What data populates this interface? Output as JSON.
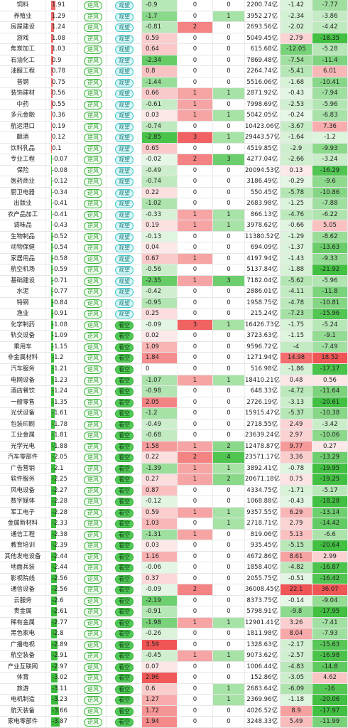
{
  "table": {
    "rows": [
      [
        "饲料",
        1.91,
        "逆风",
        "观望",
        -0.9,
        0,
        0,
        "2200.74亿",
        -1.42,
        -7.77
      ],
      [
        "养殖业",
        1.29,
        "逆风",
        "观望",
        -1.7,
        0,
        1,
        "3952.27亿",
        -2.34,
        -3.86
      ],
      [
        "房屋建设",
        1.24,
        "逆风",
        "观望",
        -0.81,
        2,
        0,
        "2693.56亿",
        -2.02,
        -4.42
      ],
      [
        "游戏",
        1.08,
        "逆风",
        "观望",
        0.59,
        0,
        0,
        "5049.45亿",
        2.79,
        -18.35
      ],
      [
        "焦炭加工",
        1.03,
        "逆风",
        "观望",
        0.64,
        0,
        0,
        "615.68亿",
        -12.05,
        -5.28
      ],
      [
        "石油化工",
        0.9,
        "逆风",
        "观望",
        -2.34,
        0,
        0,
        "7869.48亿",
        -7.54,
        -11.4
      ],
      [
        "油服工程",
        0.78,
        "逆风",
        "观望",
        0.8,
        0,
        0,
        "2264.74亿",
        -5.41,
        6.01
      ],
      [
        "普钢",
        0.75,
        "逆风",
        "观望",
        -1.44,
        0,
        0,
        "5516.06亿",
        -1.68,
        -10.41
      ],
      [
        "装饰建材",
        0.56,
        "逆风",
        "观望",
        0.66,
        1,
        1,
        "2871.92亿",
        -0.43,
        -7.94
      ],
      [
        "中药",
        0.55,
        "逆风",
        "观望",
        -0.61,
        1,
        0,
        "7998.69亿",
        -2.53,
        -5.96
      ],
      [
        "多元金融",
        0.36,
        "逆风",
        "观望",
        0.03,
        1,
        1,
        "5042.05亿",
        -0.24,
        -6.83
      ],
      [
        "航运港口",
        0.19,
        "逆风",
        "观望",
        -0.74,
        0,
        0,
        "10423.06亿",
        -3.67,
        7.36
      ],
      [
        "酿酒",
        0.12,
        "逆风",
        "观望",
        -2.85,
        3,
        1,
        "29443.57亿",
        -1.64,
        -1.2
      ],
      [
        "饮料乳品",
        0.1,
        "逆风",
        "观望",
        0.65,
        0,
        0,
        "4519.85亿",
        -2.9,
        -9.93
      ],
      [
        "专业工程",
        -0.07,
        "逆风",
        "观望",
        -0.02,
        2,
        3,
        "4277.04亿",
        -2.66,
        -3.24
      ],
      [
        "保险",
        -0.08,
        "逆风",
        "观望",
        -0.49,
        0,
        0,
        "20094.53亿",
        0.13,
        -16.29
      ],
      [
        "医药商业",
        -0.12,
        "逆风",
        "观望",
        -0.74,
        0,
        0,
        "3186.49亿",
        -0.29,
        -9.6
      ],
      [
        "厨卫电器",
        -0.34,
        "逆风",
        "观望",
        0.22,
        0,
        0,
        "550.45亿",
        -5.78,
        -10.86
      ],
      [
        "出版业",
        -0.41,
        "逆风",
        "观望",
        -1.02,
        0,
        0,
        "2683.98亿",
        -1.25,
        -7.88
      ],
      [
        "农产品加工",
        -0.41,
        "逆风",
        "观望",
        -0.33,
        1,
        1,
        "866.13亿",
        -4.76,
        -6.22
      ],
      [
        "调味品",
        -0.43,
        "逆风",
        "观望",
        0.19,
        1,
        1,
        "3978.62亿",
        -0.66,
        5.05
      ],
      [
        "生物制品",
        -0.52,
        "逆风",
        "观望",
        -0.13,
        0,
        0,
        "11380.52亿",
        -1.29,
        -8.62
      ],
      [
        "动物保健",
        -0.54,
        "逆风",
        "观望",
        0.04,
        0,
        0,
        "694.09亿",
        -1.37,
        -13.63
      ],
      [
        "家居用品",
        -0.58,
        "逆风",
        "观望",
        0.67,
        1,
        0,
        "4197.94亿",
        -1.43,
        -9.33
      ],
      [
        "航空机场",
        -0.59,
        "逆风",
        "观望",
        -0.56,
        0,
        0,
        "5137.84亿",
        -1.88,
        -21.92
      ],
      [
        "基础建设",
        -0.71,
        "逆风",
        "观望",
        -2.35,
        1,
        3,
        "7182.04亿",
        -5.62,
        -5.96
      ],
      [
        "水泥",
        -0.77,
        "逆风",
        "观望",
        -0.42,
        0,
        0,
        "2886.01亿",
        -4.11,
        -11.8
      ],
      [
        "特钢",
        -0.84,
        "逆风",
        "观望",
        -0.95,
        0,
        0,
        "1958.75亿",
        -4.78,
        -10.81
      ],
      [
        "渔业",
        -0.91,
        "逆风",
        "观望",
        0.25,
        0,
        0,
        "215.24亿",
        -7.23,
        -15.96
      ],
      [
        "化学制药",
        -1.08,
        "逆风",
        "看空",
        -0.09,
        3,
        1,
        "16426.73亿",
        -1.75,
        -5.24
      ],
      [
        "轨交设备",
        -1.09,
        "逆风",
        "看空",
        0.02,
        0,
        0,
        "3723.63亿",
        -1.15,
        -9.1
      ],
      [
        "乘用车",
        -1.15,
        "逆风",
        "看空",
        1.09,
        0,
        0,
        "9596.72亿",
        -4,
        -7.49
      ],
      [
        "非金属材料",
        -1.2,
        "逆风",
        "看空",
        1.84,
        0,
        0,
        "1271.94亿",
        14.98,
        18.52
      ],
      [
        "汽车服务",
        -1.21,
        "逆风",
        "看空",
        0,
        0,
        0,
        "516.98亿",
        -1.86,
        -17.17
      ],
      [
        "电网设备",
        -1.23,
        "逆风",
        "看空",
        -1.07,
        1,
        1,
        "18410.21亿",
        0.48,
        0.56
      ],
      [
        "酒店餐饮",
        -1.24,
        "逆风",
        "看空",
        -0.98,
        0,
        0,
        "648.33亿",
        -4.72,
        -11.64
      ],
      [
        "一般零售",
        -1.35,
        "逆风",
        "看空",
        2.05,
        0,
        0,
        "2726.19亿",
        -3.13,
        -20.61
      ],
      [
        "光伏设备",
        -1.61,
        "逆风",
        "看空",
        -1.2,
        0,
        0,
        "15915.47亿",
        -5.37,
        -10.38
      ],
      [
        "包装印刷",
        -1.78,
        "逆风",
        "看空",
        -0.49,
        0,
        0,
        "2718.55亿",
        2.49,
        -3.42
      ],
      [
        "工业金属",
        -1.81,
        "逆风",
        "看空",
        -0.68,
        0,
        0,
        "23639.24亿",
        2.97,
        -10.06
      ],
      [
        "光学光电",
        -1.88,
        "逆风",
        "看空",
        1.58,
        1,
        2,
        "12478.87亿",
        9.77,
        0.27
      ],
      [
        "汽车零部件",
        -2.05,
        "逆风",
        "看空",
        0.22,
        2,
        4,
        "23571.17亿",
        3.36,
        -13.29
      ],
      [
        "广告营销",
        -2.1,
        "逆风",
        "看空",
        -1.39,
        1,
        1,
        "3892.41亿",
        -0.78,
        -19.95
      ],
      [
        "软件服务",
        -2.25,
        "逆风",
        "看空",
        0.27,
        1,
        2,
        "20671.18亿",
        0.75,
        -19.25
      ],
      [
        "风电设备",
        -2.27,
        "逆风",
        "看空",
        0.87,
        0,
        0,
        "4334.75亿",
        -1.71,
        -5.17
      ],
      [
        "数字媒体",
        -2.28,
        "逆风",
        "看空",
        -0.12,
        0,
        0,
        "1068.88亿",
        -0.43,
        -18.28
      ],
      [
        "军工电子",
        -2.28,
        "逆风",
        "看空",
        0.59,
        1,
        1,
        "9357.55亿",
        6.29,
        -13.14
      ],
      [
        "金属新材料",
        -2.33,
        "逆风",
        "看空",
        1.03,
        0,
        1,
        "2718.71亿",
        2.79,
        -14.42
      ],
      [
        "通信工程",
        -2.38,
        "逆风",
        "看空",
        -1.31,
        1,
        0,
        "819.06亿",
        5.13,
        -6.6
      ],
      [
        "教育培训",
        -2.39,
        "逆风",
        "看空",
        0.03,
        0,
        0,
        "935.45亿",
        -5.15,
        -20.64
      ],
      [
        "其他发电设备",
        -2.44,
        "逆风",
        "看空",
        1.16,
        0,
        0,
        "4672.86亿",
        8.61,
        2.99
      ],
      [
        "地面兵装",
        -2.44,
        "逆风",
        "看空",
        -0.06,
        0,
        0,
        "1858.40亿",
        -4.82,
        -16.87
      ],
      [
        "影视院线",
        -2.56,
        "逆风",
        "看空",
        0.37,
        0,
        0,
        "2055.75亿",
        -0.51,
        -16.42
      ],
      [
        "通信设备",
        -2.56,
        "逆风",
        "看空",
        -0.09,
        2,
        0,
        "36008.45亿",
        22.1,
        36.07
      ],
      [
        "云服务",
        -2.6,
        "逆风",
        "看空",
        -2.19,
        0,
        0,
        "8373.75亿",
        -0.14,
        -9.04
      ],
      [
        "贵金属",
        -2.61,
        "逆风",
        "看空",
        -0.91,
        0,
        0,
        "5798.91亿",
        -9.8,
        -17.95
      ],
      [
        "稀有金属",
        -2.77,
        "逆风",
        "看空",
        -1.98,
        1,
        1,
        "12901.41亿",
        3.26,
        -7.41
      ],
      [
        "黑色家电",
        -2.8,
        "逆风",
        "看空",
        -0.26,
        0,
        0,
        "1811.98亿",
        8.04,
        -7.93
      ],
      [
        "广播电视",
        -2.89,
        "逆风",
        "看空",
        3.59,
        0,
        0,
        "1328.63亿",
        -2.17,
        -15.63
      ],
      [
        "航空装备",
        -2.91,
        "逆风",
        "看空",
        -0.45,
        1,
        1,
        "9073.62亿",
        -2.57,
        -16.98
      ],
      [
        "产业互联网",
        -2.97,
        "逆风",
        "看空",
        0.07,
        0,
        0,
        "1006.44亿",
        -4.83,
        -14.8
      ],
      [
        "体育",
        -3.02,
        "逆风",
        "看空",
        2.96,
        0,
        0,
        "152.86亿",
        -3.05,
        4.62
      ],
      [
        "旅游",
        -3.11,
        "逆风",
        "看空",
        0.6,
        0,
        1,
        "2683.64亿",
        -6.09,
        -16
      ],
      [
        "电机制造",
        -3.23,
        "逆风",
        "看空",
        1.27,
        0,
        1,
        "2369.96亿",
        -1.18,
        -20.06
      ],
      [
        "航天装备",
        -3.66,
        "逆风",
        "看空",
        1.72,
        0,
        0,
        "4026.52亿",
        8.9,
        -17.97
      ],
      [
        "家电零部件",
        -3.87,
        "逆风",
        "看空",
        1.94,
        0,
        0,
        "3248.33亿",
        5.49,
        -11.99
      ]
    ]
  }
}
